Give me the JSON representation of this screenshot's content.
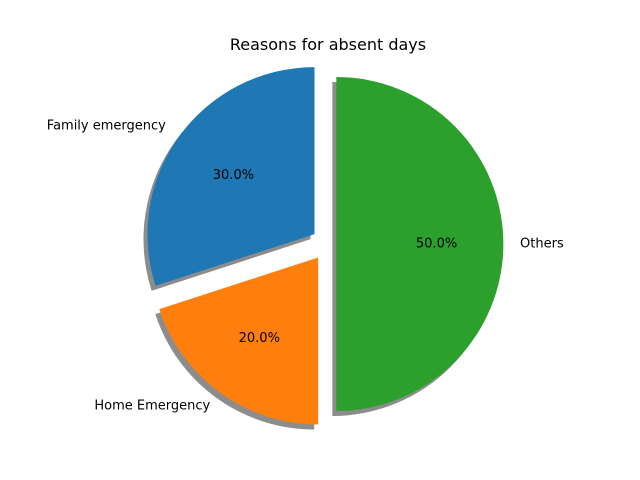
{
  "chart_data": {
    "type": "pie",
    "title": "Reasons for absent days",
    "labels": [
      "Family emergency",
      "Home Emergency",
      "Others"
    ],
    "values": [
      30,
      20,
      50
    ],
    "percent_labels": [
      "30.0%",
      "20.0%",
      "50.0%"
    ],
    "colors": [
      "#1f77b4",
      "#ff7f0e",
      "#2ca02c"
    ],
    "explode": [
      0.1,
      0.1,
      0.05
    ],
    "start_angle": 90,
    "counterclock": true,
    "shadow": true
  }
}
